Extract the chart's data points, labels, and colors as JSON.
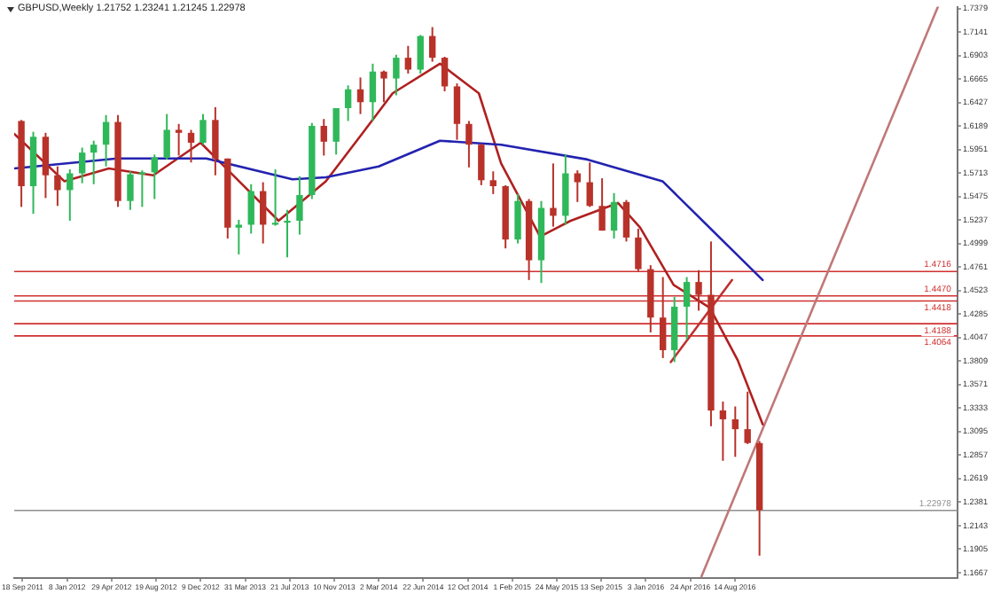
{
  "chart_data": {
    "type": "candlestick",
    "title": "GBPUSD,Weekly  1.21752 1.23241 1.21245 1.22978",
    "x": [
      "2011-09-15",
      "2011-10-15",
      "2011-11-15",
      "2011-12-15",
      "2012-01-15",
      "2012-02-15",
      "2012-03-15",
      "2012-04-15",
      "2012-05-15",
      "2012-06-15",
      "2012-07-15",
      "2012-08-15",
      "2012-09-15",
      "2012-10-15",
      "2012-11-15",
      "2012-12-15",
      "2013-01-15",
      "2013-02-15",
      "2013-03-15",
      "2013-04-15",
      "2013-05-15",
      "2013-06-15",
      "2013-07-15",
      "2013-08-15",
      "2013-09-15",
      "2013-10-15",
      "2013-11-15",
      "2013-12-15",
      "2014-01-15",
      "2014-02-15",
      "2014-03-15",
      "2014-04-15",
      "2014-05-15",
      "2014-06-15",
      "2014-07-15",
      "2014-08-15",
      "2014-09-15",
      "2014-10-15",
      "2014-11-15",
      "2014-12-15",
      "2015-01-15",
      "2015-02-15",
      "2015-03-15",
      "2015-04-15",
      "2015-05-15",
      "2015-06-15",
      "2015-07-15",
      "2015-08-15",
      "2015-09-15",
      "2015-10-15",
      "2015-11-15",
      "2015-12-15",
      "2016-01-15",
      "2016-02-15",
      "2016-03-15",
      "2016-04-15",
      "2016-05-15",
      "2016-06-15",
      "2016-07-15",
      "2016-08-15",
      "2016-09-15",
      "2016-10-15"
    ],
    "ohlc": [
      [
        1.624,
        1.625,
        1.537,
        1.558
      ],
      [
        1.558,
        1.613,
        1.53,
        1.608
      ],
      [
        1.608,
        1.612,
        1.546,
        1.569
      ],
      [
        1.569,
        1.578,
        1.538,
        1.554
      ],
      [
        1.554,
        1.575,
        1.523,
        1.571
      ],
      [
        1.571,
        1.597,
        1.561,
        1.592
      ],
      [
        1.592,
        1.604,
        1.56,
        1.6
      ],
      [
        1.6,
        1.63,
        1.578,
        1.623
      ],
      [
        1.623,
        1.63,
        1.537,
        1.543
      ],
      [
        1.543,
        1.573,
        1.534,
        1.57
      ],
      [
        1.57,
        1.574,
        1.537,
        1.572
      ],
      [
        1.572,
        1.59,
        1.545,
        1.587
      ],
      [
        1.587,
        1.631,
        1.585,
        1.615
      ],
      [
        1.615,
        1.621,
        1.589,
        1.612
      ],
      [
        1.612,
        1.615,
        1.582,
        1.602
      ],
      [
        1.602,
        1.631,
        1.6,
        1.625
      ],
      [
        1.625,
        1.638,
        1.569,
        1.586
      ],
      [
        1.586,
        1.586,
        1.505,
        1.516
      ],
      [
        1.516,
        1.524,
        1.489,
        1.519
      ],
      [
        1.519,
        1.56,
        1.51,
        1.553
      ],
      [
        1.553,
        1.562,
        1.5,
        1.519
      ],
      [
        1.519,
        1.575,
        1.518,
        1.521
      ],
      [
        1.521,
        1.534,
        1.486,
        1.523
      ],
      [
        1.523,
        1.568,
        1.509,
        1.549
      ],
      [
        1.549,
        1.622,
        1.545,
        1.619
      ],
      [
        1.619,
        1.626,
        1.589,
        1.603
      ],
      [
        1.603,
        1.637,
        1.59,
        1.637
      ],
      [
        1.637,
        1.66,
        1.624,
        1.656
      ],
      [
        1.656,
        1.668,
        1.631,
        1.643
      ],
      [
        1.643,
        1.682,
        1.624,
        1.674
      ],
      [
        1.674,
        1.675,
        1.643,
        1.667
      ],
      [
        1.667,
        1.691,
        1.65,
        1.688
      ],
      [
        1.688,
        1.7,
        1.672,
        1.676
      ],
      [
        1.676,
        1.711,
        1.672,
        1.71
      ],
      [
        1.71,
        1.719,
        1.684,
        1.688
      ],
      [
        1.688,
        1.689,
        1.654,
        1.659
      ],
      [
        1.659,
        1.662,
        1.605,
        1.621
      ],
      [
        1.621,
        1.624,
        1.577,
        1.6
      ],
      [
        1.6,
        1.601,
        1.559,
        1.564
      ],
      [
        1.564,
        1.573,
        1.55,
        1.558
      ],
      [
        1.558,
        1.559,
        1.495,
        1.504
      ],
      [
        1.504,
        1.55,
        1.5,
        1.543
      ],
      [
        1.543,
        1.545,
        1.463,
        1.483
      ],
      [
        1.483,
        1.543,
        1.46,
        1.536
      ],
      [
        1.536,
        1.581,
        1.517,
        1.528
      ],
      [
        1.528,
        1.59,
        1.519,
        1.571
      ],
      [
        1.571,
        1.574,
        1.542,
        1.562
      ],
      [
        1.562,
        1.582,
        1.537,
        1.538
      ],
      [
        1.538,
        1.566,
        1.513,
        1.513
      ],
      [
        1.513,
        1.551,
        1.505,
        1.542
      ],
      [
        1.542,
        1.544,
        1.502,
        1.506
      ],
      [
        1.506,
        1.515,
        1.472,
        1.474
      ],
      [
        1.474,
        1.478,
        1.41,
        1.425
      ],
      [
        1.425,
        1.466,
        1.384,
        1.392
      ],
      [
        1.392,
        1.446,
        1.38,
        1.436
      ],
      [
        1.436,
        1.466,
        1.403,
        1.461
      ],
      [
        1.461,
        1.473,
        1.432,
        1.448
      ],
      [
        1.448,
        1.502,
        1.315,
        1.331
      ],
      [
        1.331,
        1.34,
        1.28,
        1.322
      ],
      [
        1.322,
        1.335,
        1.284,
        1.312
      ],
      [
        1.312,
        1.35,
        1.297,
        1.298
      ],
      [
        1.298,
        1.3,
        1.184,
        1.23
      ]
    ],
    "colors": [
      "#b8322a",
      "#2fb85a",
      "#b8322a",
      "#b8322a",
      "#2fb85a",
      "#2fb85a",
      "#2fb85a",
      "#2fb85a",
      "#b8322a",
      "#2fb85a",
      "#2fb85a",
      "#2fb85a",
      "#2fb85a",
      "#b8322a",
      "#b8322a",
      "#2fb85a",
      "#b8322a",
      "#b8322a",
      "#2fb85a",
      "#2fb85a",
      "#b8322a",
      "#2fb85a",
      "#2fb85a",
      "#2fb85a",
      "#2fb85a",
      "#b8322a",
      "#2fb85a",
      "#2fb85a",
      "#b8322a",
      "#2fb85a",
      "#b8322a",
      "#2fb85a",
      "#b8322a",
      "#2fb85a",
      "#b8322a",
      "#b8322a",
      "#b8322a",
      "#b8322a",
      "#b8322a",
      "#b8322a",
      "#b8322a",
      "#2fb85a",
      "#b8322a",
      "#2fb85a",
      "#b8322a",
      "#2fb85a",
      "#b8322a",
      "#b8322a",
      "#b8322a",
      "#2fb85a",
      "#b8322a",
      "#b8322a",
      "#b8322a",
      "#b8322a",
      "#2fb85a",
      "#2fb85a",
      "#b8322a",
      "#b8322a",
      "#b8322a",
      "#b8322a",
      "#b8322a",
      "#b8322a"
    ],
    "series": [
      {
        "type": "line",
        "color": "#2323b0",
        "x": [
          "2011-08-28",
          "2012-05-13",
          "2012-12-23",
          "2013-07-28",
          "2013-10-20",
          "2014-03-02",
          "2014-08-03",
          "2015-01-04",
          "2015-08-09",
          "2016-02-14",
          "2016-10-23"
        ],
        "values": [
          1.576,
          1.586,
          1.586,
          1.565,
          1.567,
          1.578,
          1.604,
          1.6,
          1.585,
          1.563,
          1.463
        ]
      },
      {
        "type": "line",
        "color": "#b02020",
        "x": [
          "2011-08-28",
          "2012-01-01",
          "2012-04-22",
          "2012-08-12",
          "2012-12-09",
          "2013-06-23",
          "2013-10-20",
          "2014-01-19",
          "2014-04-06",
          "2014-08-03",
          "2014-11-09",
          "2015-01-04",
          "2015-04-12",
          "2015-06-28",
          "2015-10-25",
          "2015-12-20",
          "2016-03-13",
          "2016-06-12",
          "2016-08-21",
          "2016-10-23"
        ],
        "values": [
          1.611,
          1.563,
          1.576,
          1.569,
          1.602,
          1.523,
          1.563,
          1.611,
          1.652,
          1.682,
          1.652,
          1.581,
          1.507,
          1.523,
          1.541,
          1.516,
          1.458,
          1.435,
          1.382,
          1.317
        ]
      },
      {
        "type": "line",
        "color": "#c07878",
        "x": [
          "2016-05-22",
          "2018-01-07"
        ],
        "values": [
          1.163,
          1.7397
        ]
      },
      {
        "type": "line",
        "color": "#c03030",
        "x": [
          "2016-03-06",
          "2016-08-07"
        ],
        "values": [
          1.38,
          1.463
        ]
      }
    ],
    "ref_lines": [
      {
        "axis": "y",
        "value": 1.4716,
        "label": "1.4716",
        "color": "#d03030"
      },
      {
        "axis": "y",
        "value": 1.447,
        "label": "1.4470",
        "color": "#d03030"
      },
      {
        "axis": "y",
        "value": 1.4418,
        "label": "1.4418",
        "color": "#d03030"
      },
      {
        "axis": "y",
        "value": 1.4188,
        "label": "1.4188",
        "color": "#d03030"
      },
      {
        "axis": "y",
        "value": 1.4064,
        "label": "1.4064",
        "color": "#d03030"
      },
      {
        "axis": "y",
        "value": 1.22978,
        "label": "1.22978",
        "color": "#909090"
      }
    ],
    "xlim": [
      "2011-08-28",
      "2018-02-25"
    ],
    "xticks": [
      {
        "value": "2011-09-18",
        "label": "18 Sep 2011"
      },
      {
        "value": "2012-01-08",
        "label": "8 Jan 2012"
      },
      {
        "value": "2012-04-29",
        "label": "29 Apr 2012"
      },
      {
        "value": "2012-08-19",
        "label": "19 Aug 2012"
      },
      {
        "value": "2012-12-09",
        "label": "9 Dec 2012"
      },
      {
        "value": "2013-03-31",
        "label": "31 Mar 2013"
      },
      {
        "value": "2013-07-21",
        "label": "21 Jul 2013"
      },
      {
        "value": "2013-11-10",
        "label": "10 Nov 2013"
      },
      {
        "value": "2014-03-02",
        "label": "2 Mar 2014"
      },
      {
        "value": "2014-06-22",
        "label": "22 Jun 2014"
      },
      {
        "value": "2014-10-12",
        "label": "12 Oct 2014"
      },
      {
        "value": "2015-02-01",
        "label": "1 Feb 2015"
      },
      {
        "value": "2015-05-24",
        "label": "24 May 2015"
      },
      {
        "value": "2015-09-13",
        "label": "13 Sep 2015"
      },
      {
        "value": "2016-01-03",
        "label": "3 Jan 2016"
      },
      {
        "value": "2016-04-24",
        "label": "24 Apr 2016"
      },
      {
        "value": "2016-08-14",
        "label": "14 Aug 2016"
      }
    ],
    "ylim": [
      1.1614,
      1.7397
    ],
    "yticks": [
      1.1667,
      1.1905,
      1.2143,
      1.2381,
      1.2619,
      1.2857,
      1.3095,
      1.3333,
      1.3571,
      1.3809,
      1.4047,
      1.4285,
      1.4523,
      1.4761,
      1.4999,
      1.5237,
      1.5475,
      1.5713,
      1.5951,
      1.6189,
      1.6427,
      1.6665,
      1.6903,
      1.7141,
      1.7379
    ],
    "grid": false,
    "legend": false,
    "marker": "none",
    "line_style": "solid"
  }
}
